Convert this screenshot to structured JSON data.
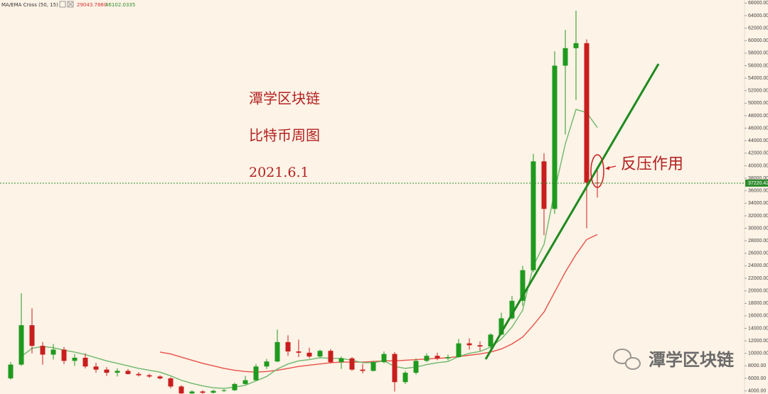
{
  "chart_data": {
    "type": "candlestick",
    "indicator": {
      "label": "MA/EMA Cross (50, 15)",
      "readouts": [
        {
          "value": 29043.786,
          "label": "29043.7860",
          "color": "#d93030"
        },
        {
          "value": 46102.0335,
          "label": "46102.0335",
          "color": "#2e8b2e"
        }
      ]
    },
    "annotations": [
      "潭学区块链",
      "比特币周图",
      "2021.6.1",
      "反压作用"
    ],
    "watermark": "潭学区块链",
    "last_price": {
      "value": 37220.42,
      "label": "37220.42",
      "color": "#2e8b2e"
    },
    "up_color": "#1f9a1f",
    "down_color": "#c81e1e",
    "candles": {
      "open": [
        6000,
        8200,
        14500,
        11200,
        9800,
        10600,
        8800,
        9300,
        7900,
        7400,
        6900,
        7200,
        6700,
        6500,
        6300,
        6000,
        4700,
        3600,
        3900,
        3700,
        4000,
        4100,
        5100,
        5700,
        7900,
        8700,
        11800,
        10300,
        10100,
        9500,
        10400,
        8600,
        9200,
        7400,
        7200,
        8600,
        9900,
        5400,
        6900,
        8800,
        9600,
        9200,
        9400,
        11600,
        11300,
        11100,
        13000,
        15600,
        18400,
        23300,
        40700,
        33100,
        56000,
        58800,
        59600,
        37300
      ],
      "high": [
        8600,
        19600,
        17200,
        11800,
        11500,
        11000,
        9900,
        10000,
        8500,
        7800,
        7600,
        7500,
        7000,
        6700,
        6500,
        6200,
        4900,
        4100,
        4100,
        4200,
        4300,
        5300,
        6400,
        8300,
        9100,
        13800,
        12900,
        12200,
        10900,
        10600,
        10700,
        9500,
        9400,
        8300,
        8800,
        10300,
        10200,
        7200,
        9200,
        10000,
        10100,
        9800,
        12300,
        12400,
        11900,
        13200,
        16500,
        19200,
        24000,
        41900,
        42000,
        58300,
        61700,
        64800,
        60200,
        39500
      ],
      "low": [
        5800,
        8000,
        10000,
        8200,
        9000,
        8300,
        8000,
        7600,
        6900,
        6400,
        6300,
        6600,
        6300,
        6100,
        5800,
        4400,
        3200,
        3400,
        3500,
        3600,
        3800,
        4000,
        5000,
        5600,
        7500,
        8600,
        9600,
        9400,
        9200,
        9300,
        8400,
        7500,
        7200,
        6800,
        7100,
        8400,
        3900,
        5100,
        6600,
        8600,
        8900,
        8900,
        9300,
        10600,
        10400,
        10800,
        12900,
        15400,
        17600,
        23000,
        28900,
        32300,
        45000,
        50500,
        30000,
        34900
      ],
      "close": [
        8200,
        14500,
        11200,
        9800,
        10600,
        8800,
        9300,
        7900,
        7400,
        6900,
        7200,
        6700,
        6500,
        6300,
        6000,
        4700,
        3600,
        3900,
        3700,
        4000,
        4100,
        5100,
        5700,
        7900,
        8700,
        11800,
        10300,
        10100,
        9500,
        10400,
        8600,
        9200,
        7400,
        7200,
        8600,
        9900,
        5400,
        6900,
        8800,
        9600,
        9200,
        9400,
        11600,
        11300,
        11100,
        13000,
        15600,
        18400,
        23300,
        40700,
        33100,
        56000,
        58800,
        59600,
        37300,
        37200
      ]
    },
    "ma_lines": [
      {
        "color": "#e8504a",
        "values": [
          null,
          null,
          null,
          null,
          null,
          null,
          null,
          null,
          null,
          null,
          null,
          null,
          null,
          null,
          10200,
          9900,
          9400,
          8900,
          8400,
          8000,
          7600,
          7300,
          7100,
          7000,
          7100,
          7300,
          7600,
          7900,
          8100,
          8300,
          8500,
          8600,
          8600,
          8600,
          8700,
          8800,
          8800,
          8900,
          9000,
          9100,
          9200,
          9300,
          9500,
          9700,
          9900,
          10200,
          10700,
          11500,
          12600,
          14500,
          16600,
          19800,
          23000,
          25800,
          28200,
          29000
        ]
      },
      {
        "color": "#6db86d",
        "values": [
          null,
          9500,
          10800,
          11100,
          10900,
          10500,
          10200,
          9800,
          9300,
          8800,
          8400,
          8000,
          7600,
          7300,
          7000,
          6400,
          5700,
          5200,
          4800,
          4500,
          4400,
          4600,
          4900,
          5600,
          6300,
          7500,
          8300,
          8800,
          9000,
          9300,
          9200,
          9200,
          8900,
          8500,
          8500,
          8800,
          7900,
          7600,
          7800,
          8200,
          8500,
          8700,
          9500,
          10000,
          10300,
          11000,
          12300,
          14200,
          16900,
          24000,
          27400,
          36000,
          43500,
          49000,
          48500,
          46100
        ]
      }
    ],
    "ylim": [
      3500,
      66500
    ],
    "yticks": [
      {
        "value": 4000,
        "label": "4000.00"
      },
      {
        "value": 6000,
        "label": "6000.00"
      },
      {
        "value": 8000,
        "label": "8000.00"
      },
      {
        "value": 10000,
        "label": "10000.00"
      },
      {
        "value": 12000,
        "label": "12000.00"
      },
      {
        "value": 14000,
        "label": "14000.00"
      },
      {
        "value": 16000,
        "label": "16000.00"
      },
      {
        "value": 18000,
        "label": "18000.00"
      },
      {
        "value": 20000,
        "label": "20000.00"
      },
      {
        "value": 22000,
        "label": "22000.00"
      },
      {
        "value": 24000,
        "label": "24000.00"
      },
      {
        "value": 26000,
        "label": "26000.00"
      },
      {
        "value": 28000,
        "label": "28000.00"
      },
      {
        "value": 30000,
        "label": "30000.00"
      },
      {
        "value": 32000,
        "label": "32000.00"
      },
      {
        "value": 34000,
        "label": "34000.00"
      },
      {
        "value": 36000,
        "label": "36000.00"
      },
      {
        "value": 38000,
        "label": "38000.00"
      },
      {
        "value": 40000,
        "label": "40000.00"
      },
      {
        "value": 42000,
        "label": "42000.00"
      },
      {
        "value": 44000,
        "label": "44000.00"
      },
      {
        "value": 46000,
        "label": "46000.00"
      },
      {
        "value": 48000,
        "label": "48000.00"
      },
      {
        "value": 50000,
        "label": "50000.00"
      },
      {
        "value": 52000,
        "label": "52000.00"
      },
      {
        "value": 54000,
        "label": "54000.00"
      },
      {
        "value": 56000,
        "label": "56000.00"
      },
      {
        "value": 58000,
        "label": "58000.00"
      },
      {
        "value": 60000,
        "label": "60000.00"
      },
      {
        "value": 62000,
        "label": "62000.00"
      },
      {
        "value": 64000,
        "label": "64000.00"
      },
      {
        "value": 66000,
        "label": "66000.00"
      }
    ]
  }
}
